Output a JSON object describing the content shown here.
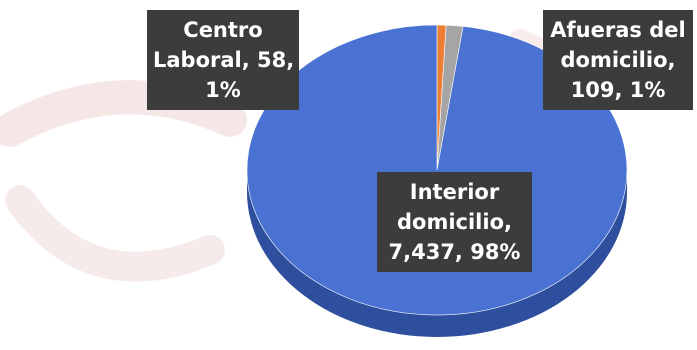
{
  "chart_data": {
    "type": "pie",
    "title": "",
    "slices": [
      {
        "name": "Interior domicilio",
        "value": 7437,
        "percent": 98,
        "color": "#4a72d2",
        "label_lines": [
          "Interior",
          "domicilio,",
          "7,437, 98%"
        ]
      },
      {
        "name": "Centro Laboral",
        "value": 58,
        "percent": 1,
        "color": "#ed7d31",
        "label_lines": [
          "Centro",
          "Laboral, 58,",
          "1%"
        ]
      },
      {
        "name": "Afueras del domicilio",
        "value": 109,
        "percent": 1,
        "color": "#a5a5a5",
        "label_lines": [
          "Afueras del",
          "domicilio,",
          "109, 1%"
        ]
      }
    ],
    "legend": "none"
  },
  "colors": {
    "label_background": "#3c3c3c",
    "label_text": "#ffffff",
    "side_blue": "#2e4f9e"
  }
}
